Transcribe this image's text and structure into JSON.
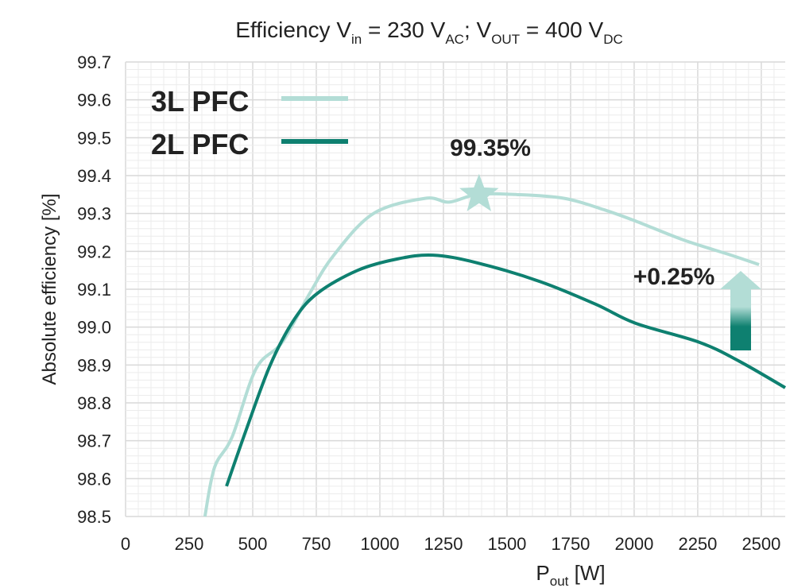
{
  "chart_data": {
    "type": "line",
    "title": "Efficiency V_in = 230 V_AC; V_OUT = 400 V_DC",
    "title_parts": {
      "a": "Efficiency V",
      "a_sub": "in",
      "b": " = 230 V",
      "b_sub": "AC",
      "c": "; V",
      "c_sub": "OUT",
      "d": " = 400 V",
      "d_sub": "DC"
    },
    "xlabel": "P",
    "xlabel_sub": "out",
    "xlabel_unit": " [W]",
    "ylabel": "Absolute efficiency [%]",
    "xlim": [
      0,
      2594
    ],
    "ylim": [
      98.5,
      99.7
    ],
    "xticks": [
      0,
      250,
      500,
      750,
      1000,
      1250,
      1500,
      1750,
      2000,
      2250,
      2500
    ],
    "yticks": [
      "98.5",
      "98.6",
      "98.7",
      "98.8",
      "98.9",
      "99.0",
      "99.1",
      "99.2",
      "99.3",
      "99.4",
      "99.5",
      "99.6",
      "99.7"
    ],
    "grid": true,
    "legend": "top-left",
    "series": [
      {
        "name": "3L PFC",
        "color": "#b3ddd6",
        "x": [
          312,
          350,
          419,
          513,
          616,
          725,
          819,
          975,
          1178,
          1272,
          1381,
          1538,
          1725,
          1881,
          2006,
          2194,
          2381,
          2491
        ],
        "y": [
          98.5,
          98.63,
          98.71,
          98.89,
          98.96,
          99.09,
          99.19,
          99.3,
          99.34,
          99.33,
          99.35,
          99.35,
          99.34,
          99.31,
          99.28,
          99.23,
          99.19,
          99.165
        ]
      },
      {
        "name": "2L PFC",
        "color": "#0e8070",
        "x": [
          397,
          475,
          569,
          663,
          756,
          913,
          1069,
          1209,
          1381,
          1631,
          1850,
          2006,
          2256,
          2413,
          2594
        ],
        "y": [
          98.58,
          98.73,
          98.9,
          99.02,
          99.09,
          99.15,
          99.18,
          99.19,
          99.17,
          99.12,
          99.06,
          99.01,
          98.96,
          98.91,
          98.84
        ]
      }
    ],
    "annotations": [
      {
        "text": "99.35%",
        "x": 1390,
        "y": 99.35,
        "marker": "star"
      },
      {
        "text": "+0.25%",
        "marker": "arrow-up"
      }
    ]
  }
}
